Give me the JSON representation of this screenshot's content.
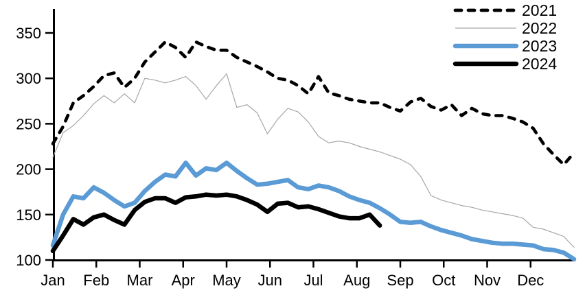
{
  "chart_data": {
    "type": "line",
    "title": "",
    "xlabel": "",
    "ylabel": "",
    "x_unit": "weekly points (Jan-Dec)",
    "x_axis": {
      "tick_labels": [
        "Jan",
        "Feb",
        "Mar",
        "Apr",
        "May",
        "Jun",
        "Jul",
        "Aug",
        "Sep",
        "Oct",
        "Nov",
        "Dec"
      ]
    },
    "y_axis": {
      "tick_labels": [
        "350",
        "300",
        "250",
        "200",
        "150",
        "100"
      ],
      "tick_values": [
        350,
        300,
        250,
        200,
        150,
        100
      ],
      "min": 100,
      "max": 375,
      "grid": false
    },
    "legend": {
      "position": "top-right"
    },
    "series": [
      {
        "name": "2021",
        "color": "#000000",
        "style": "dashed",
        "width": 4.6,
        "values": [
          228,
          247,
          273,
          281,
          291,
          303,
          306,
          290,
          300,
          318,
          329,
          340,
          334,
          323,
          340,
          335,
          331,
          331,
          323,
          318,
          313,
          307,
          300,
          298,
          292,
          283,
          302,
          284,
          281,
          277,
          275,
          273,
          273,
          268,
          264,
          274,
          278,
          269,
          265,
          271,
          259,
          267,
          261,
          259,
          259,
          256,
          252,
          245,
          228,
          216,
          205,
          218
        ]
      },
      {
        "name": "2022",
        "color": "#A6A6A6",
        "style": "solid",
        "width": 1.2,
        "values": [
          213,
          240,
          248,
          259,
          272,
          281,
          273,
          283,
          273,
          300,
          298,
          295,
          298,
          302,
          292,
          277,
          292,
          305,
          268,
          271,
          262,
          239,
          255,
          267,
          263,
          252,
          236,
          229,
          231,
          229,
          225,
          222,
          219,
          215,
          211,
          205,
          192,
          171,
          166,
          163,
          160,
          158,
          155,
          153,
          151,
          149,
          146,
          136,
          134,
          130,
          126,
          114
        ]
      },
      {
        "name": "2023",
        "color": "#5B9BD5",
        "style": "solid",
        "width": 6.5,
        "values": [
          116,
          150,
          170,
          168,
          180,
          174,
          166,
          159,
          163,
          176,
          186,
          194,
          192,
          207,
          193,
          201,
          199,
          207,
          198,
          190,
          183,
          184,
          186,
          188,
          180,
          178,
          182,
          180,
          176,
          170,
          166,
          163,
          157,
          150,
          142,
          141,
          142,
          137,
          133,
          130,
          127,
          123,
          121,
          119,
          118,
          118,
          117,
          116,
          112,
          111,
          108,
          101
        ]
      },
      {
        "name": "2024",
        "color": "#000000",
        "style": "solid",
        "width": 6.5,
        "values": [
          110,
          127,
          145,
          139,
          147,
          150,
          144,
          139,
          155,
          164,
          168,
          168,
          163,
          169,
          170,
          172,
          171,
          172,
          170,
          166,
          161,
          153,
          162,
          163,
          158,
          159,
          156,
          152,
          148,
          146,
          146,
          150,
          138
        ]
      }
    ]
  }
}
